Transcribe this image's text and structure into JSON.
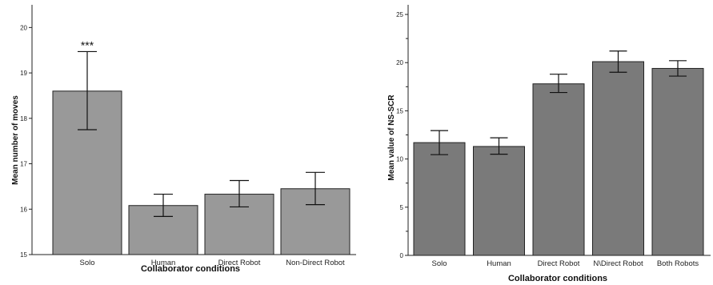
{
  "chart_data": [
    {
      "type": "bar",
      "categories": [
        "Solo",
        "Human",
        "Direct Robot",
        "Non-Direct Robot"
      ],
      "values": [
        18.6,
        16.08,
        16.33,
        16.45
      ],
      "error_low": [
        17.75,
        15.84,
        16.05,
        16.1
      ],
      "error_high": [
        19.47,
        16.33,
        16.63,
        16.81
      ],
      "ylim": [
        15,
        20.5
      ],
      "yticks": [
        "15",
        "16",
        "17",
        "18",
        "19",
        "20"
      ],
      "xlabel": "Collaborator conditions",
      "ylabel": "Mean number of moves",
      "annotation": "***",
      "bar_color": "#999999"
    },
    {
      "type": "bar",
      "categories": [
        "Solo",
        "Human",
        "Direct Robot",
        "N\\Direct Robot",
        "Both Robots"
      ],
      "values": [
        11.7,
        11.3,
        17.8,
        20.1,
        19.4
      ],
      "error_low": [
        10.45,
        10.5,
        16.9,
        19.0,
        18.6
      ],
      "error_high": [
        12.95,
        12.2,
        18.8,
        21.2,
        20.2
      ],
      "ylim": [
        0,
        26
      ],
      "yticks": [
        "0",
        "5",
        "10",
        "15",
        "20",
        "25"
      ],
      "xlabel": "Collaborator conditions",
      "ylabel": "Mean value of NS-SCR",
      "bar_color": "#7a7a7a"
    }
  ]
}
